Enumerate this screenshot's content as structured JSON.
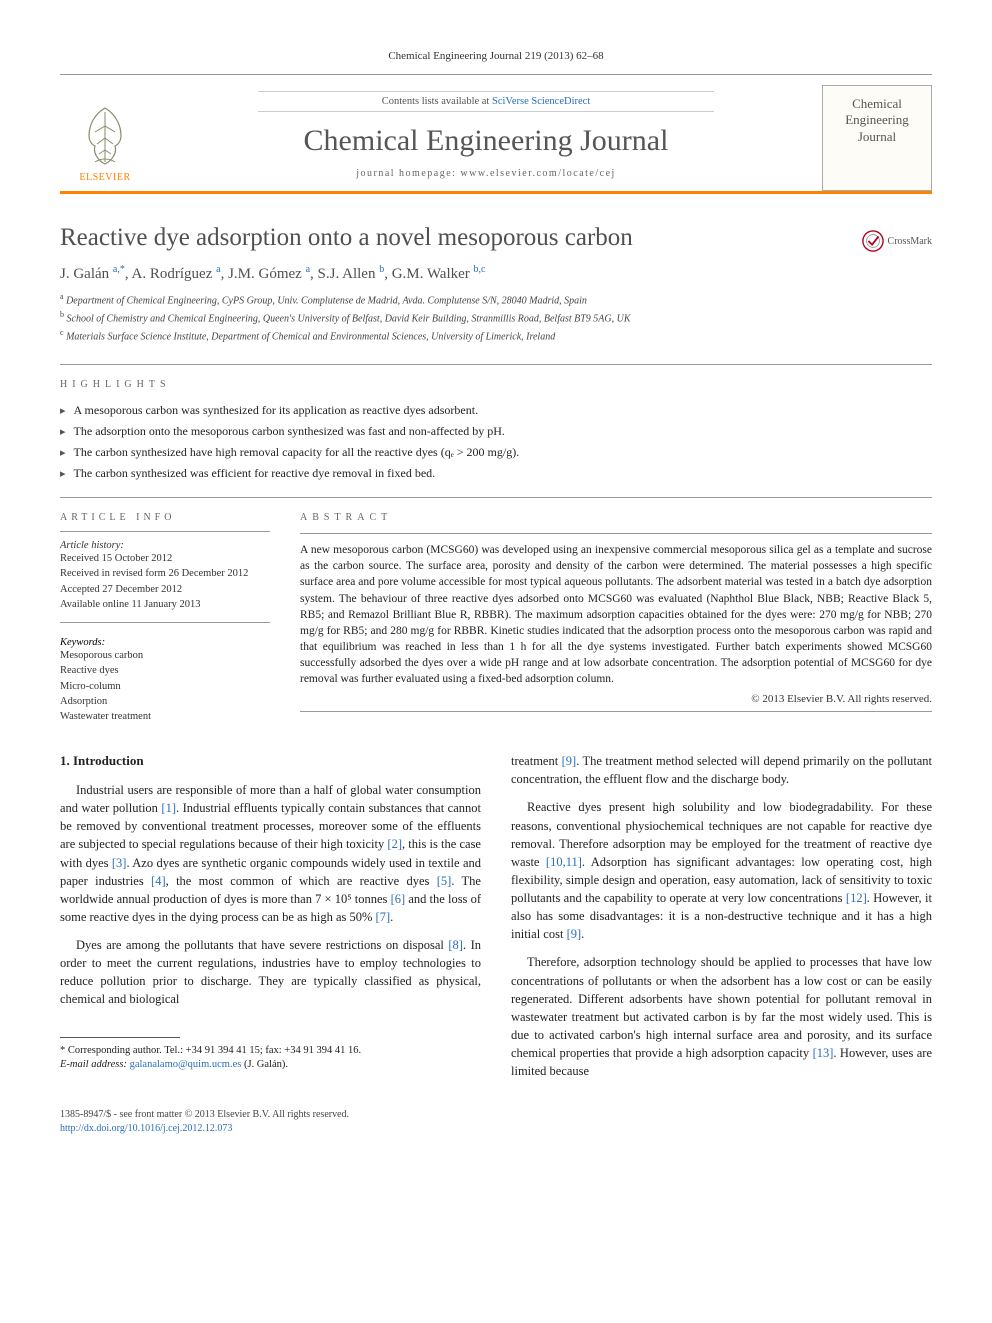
{
  "journal_ref": "Chemical Engineering Journal 219 (2013) 62–68",
  "header": {
    "contents_prefix": "Contents lists available at ",
    "contents_link": "SciVerse ScienceDirect",
    "journal_title": "Chemical Engineering Journal",
    "homepage_prefix": "journal homepage: ",
    "homepage_url": "www.elsevier.com/locate/cej",
    "elsevier_label": "ELSEVIER",
    "cover_title": "Chemical Engineering Journal",
    "accent_color": "#ff8200",
    "link_color": "#2a6ebb",
    "title_gray": "#555"
  },
  "title": "Reactive dye adsorption onto a novel mesoporous carbon",
  "crossmark_label": "CrossMark",
  "authors_html": "J. Galán <sup>a,*</sup>, A. Rodríguez <sup>a</sup>, J.M. Gómez <sup>a</sup>, S.J. Allen <sup>b</sup>, G.M. Walker <sup>b,c</sup>",
  "affiliations": [
    {
      "sup": "a",
      "text": "Department of Chemical Engineering, CyPS Group, Univ. Complutense de Madrid, Avda. Complutense S/N, 28040 Madrid, Spain"
    },
    {
      "sup": "b",
      "text": "School of Chemistry and Chemical Engineering, Queen's University of Belfast, David Keir Building, Stranmillis Road, Belfast BT9 5AG, UK"
    },
    {
      "sup": "c",
      "text": "Materials Surface Science Institute, Department of Chemical and Environmental Sciences, University of Limerick, Ireland"
    }
  ],
  "highlights_label": "HIGHLIGHTS",
  "highlights": [
    "A mesoporous carbon was synthesized for its application as reactive dyes adsorbent.",
    "The adsorption onto the mesoporous carbon synthesized was fast and non-affected by pH.",
    "The carbon synthesized have high removal capacity for all the reactive dyes (qₑ > 200 mg/g).",
    "The carbon synthesized was efficient for reactive dye removal in fixed bed."
  ],
  "article_info": {
    "label": "ARTICLE INFO",
    "history_head": "Article history:",
    "history": [
      "Received 15 October 2012",
      "Received in revised form 26 December 2012",
      "Accepted 27 December 2012",
      "Available online 11 January 2013"
    ],
    "keywords_head": "Keywords:",
    "keywords": [
      "Mesoporous carbon",
      "Reactive dyes",
      "Micro-column",
      "Adsorption",
      "Wastewater treatment"
    ]
  },
  "abstract": {
    "label": "ABSTRACT",
    "text": "A new mesoporous carbon (MCSG60) was developed using an inexpensive commercial mesoporous silica gel as a template and sucrose as the carbon source. The surface area, porosity and density of the carbon were determined. The material possesses a high specific surface area and pore volume accessible for most typical aqueous pollutants. The adsorbent material was tested in a batch dye adsorption system. The behaviour of three reactive dyes adsorbed onto MCSG60 was evaluated (Naphthol Blue Black, NBB; Reactive Black 5, RB5; and Remazol Brilliant Blue R, RBBR). The maximum adsorption capacities obtained for the dyes were: 270 mg/g for NBB; 270 mg/g for RB5; and 280 mg/g for RBBR. Kinetic studies indicated that the adsorption process onto the mesoporous carbon was rapid and that equilibrium was reached in less than 1 h for all the dye systems investigated. Further batch experiments showed MCSG60 successfully adsorbed the dyes over a wide pH range and at low adsorbate concentration. The adsorption potential of MCSG60 for dye removal was further evaluated using a fixed-bed adsorption column.",
    "copyright": "© 2013 Elsevier B.V. All rights reserved."
  },
  "body": {
    "section_heading": "1. Introduction",
    "left_paragraphs": [
      "Industrial users are responsible of more than a half of global water consumption and water pollution [1]. Industrial effluents typically contain substances that cannot be removed by conventional treatment processes, moreover some of the effluents are subjected to special regulations because of their high toxicity [2], this is the case with dyes [3]. Azo dyes are synthetic organic compounds widely used in textile and paper industries [4], the most common of which are reactive dyes [5]. The worldwide annual production of dyes is more than 7 × 10⁵ tonnes [6] and the loss of some reactive dyes in the dying process can be as high as 50% [7].",
      "Dyes are among the pollutants that have severe restrictions on disposal [8]. In order to meet the current regulations, industries have to employ technologies to reduce pollution prior to discharge. They are typically classified as physical, chemical and biological"
    ],
    "right_paragraphs": [
      "treatment [9]. The treatment method selected will depend primarily on the pollutant concentration, the effluent flow and the discharge body.",
      "Reactive dyes present high solubility and low biodegradability. For these reasons, conventional physiochemical techniques are not capable for reactive dye removal. Therefore adsorption may be employed for the treatment of reactive dye waste [10,11]. Adsorption has significant advantages: low operating cost, high flexibility, simple design and operation, easy automation, lack of sensitivity to toxic pollutants and the capability to operate at very low concentrations [12]. However, it also has some disadvantages: it is a non-destructive technique and it has a high initial cost [9].",
      "Therefore, adsorption technology should be applied to processes that have low concentrations of pollutants or when the adsorbent has a low cost or can be easily regenerated. Different adsorbents have shown potential for pollutant removal in wastewater treatment but activated carbon is by far the most widely used. This is due to activated carbon's high internal surface area and porosity, and its surface chemical properties that provide a high adsorption capacity [13]. However, uses are limited because"
    ]
  },
  "footnote": {
    "corresponding": "* Corresponding author. Tel.: +34 91 394 41 15; fax: +34 91 394 41 16.",
    "email_label": "E-mail address:",
    "email": "galanalamo@quim.ucm.es",
    "email_owner": "(J. Galán)."
  },
  "footer": {
    "line1": "1385-8947/$ - see front matter © 2013 Elsevier B.V. All rights reserved.",
    "doi_label": "http://dx.doi.org/",
    "doi": "10.1016/j.cej.2012.12.073"
  },
  "refs_in_text": [
    "1",
    "2",
    "3",
    "4",
    "5",
    "6",
    "7",
    "8",
    "9",
    "10",
    "11",
    "12",
    "13"
  ]
}
